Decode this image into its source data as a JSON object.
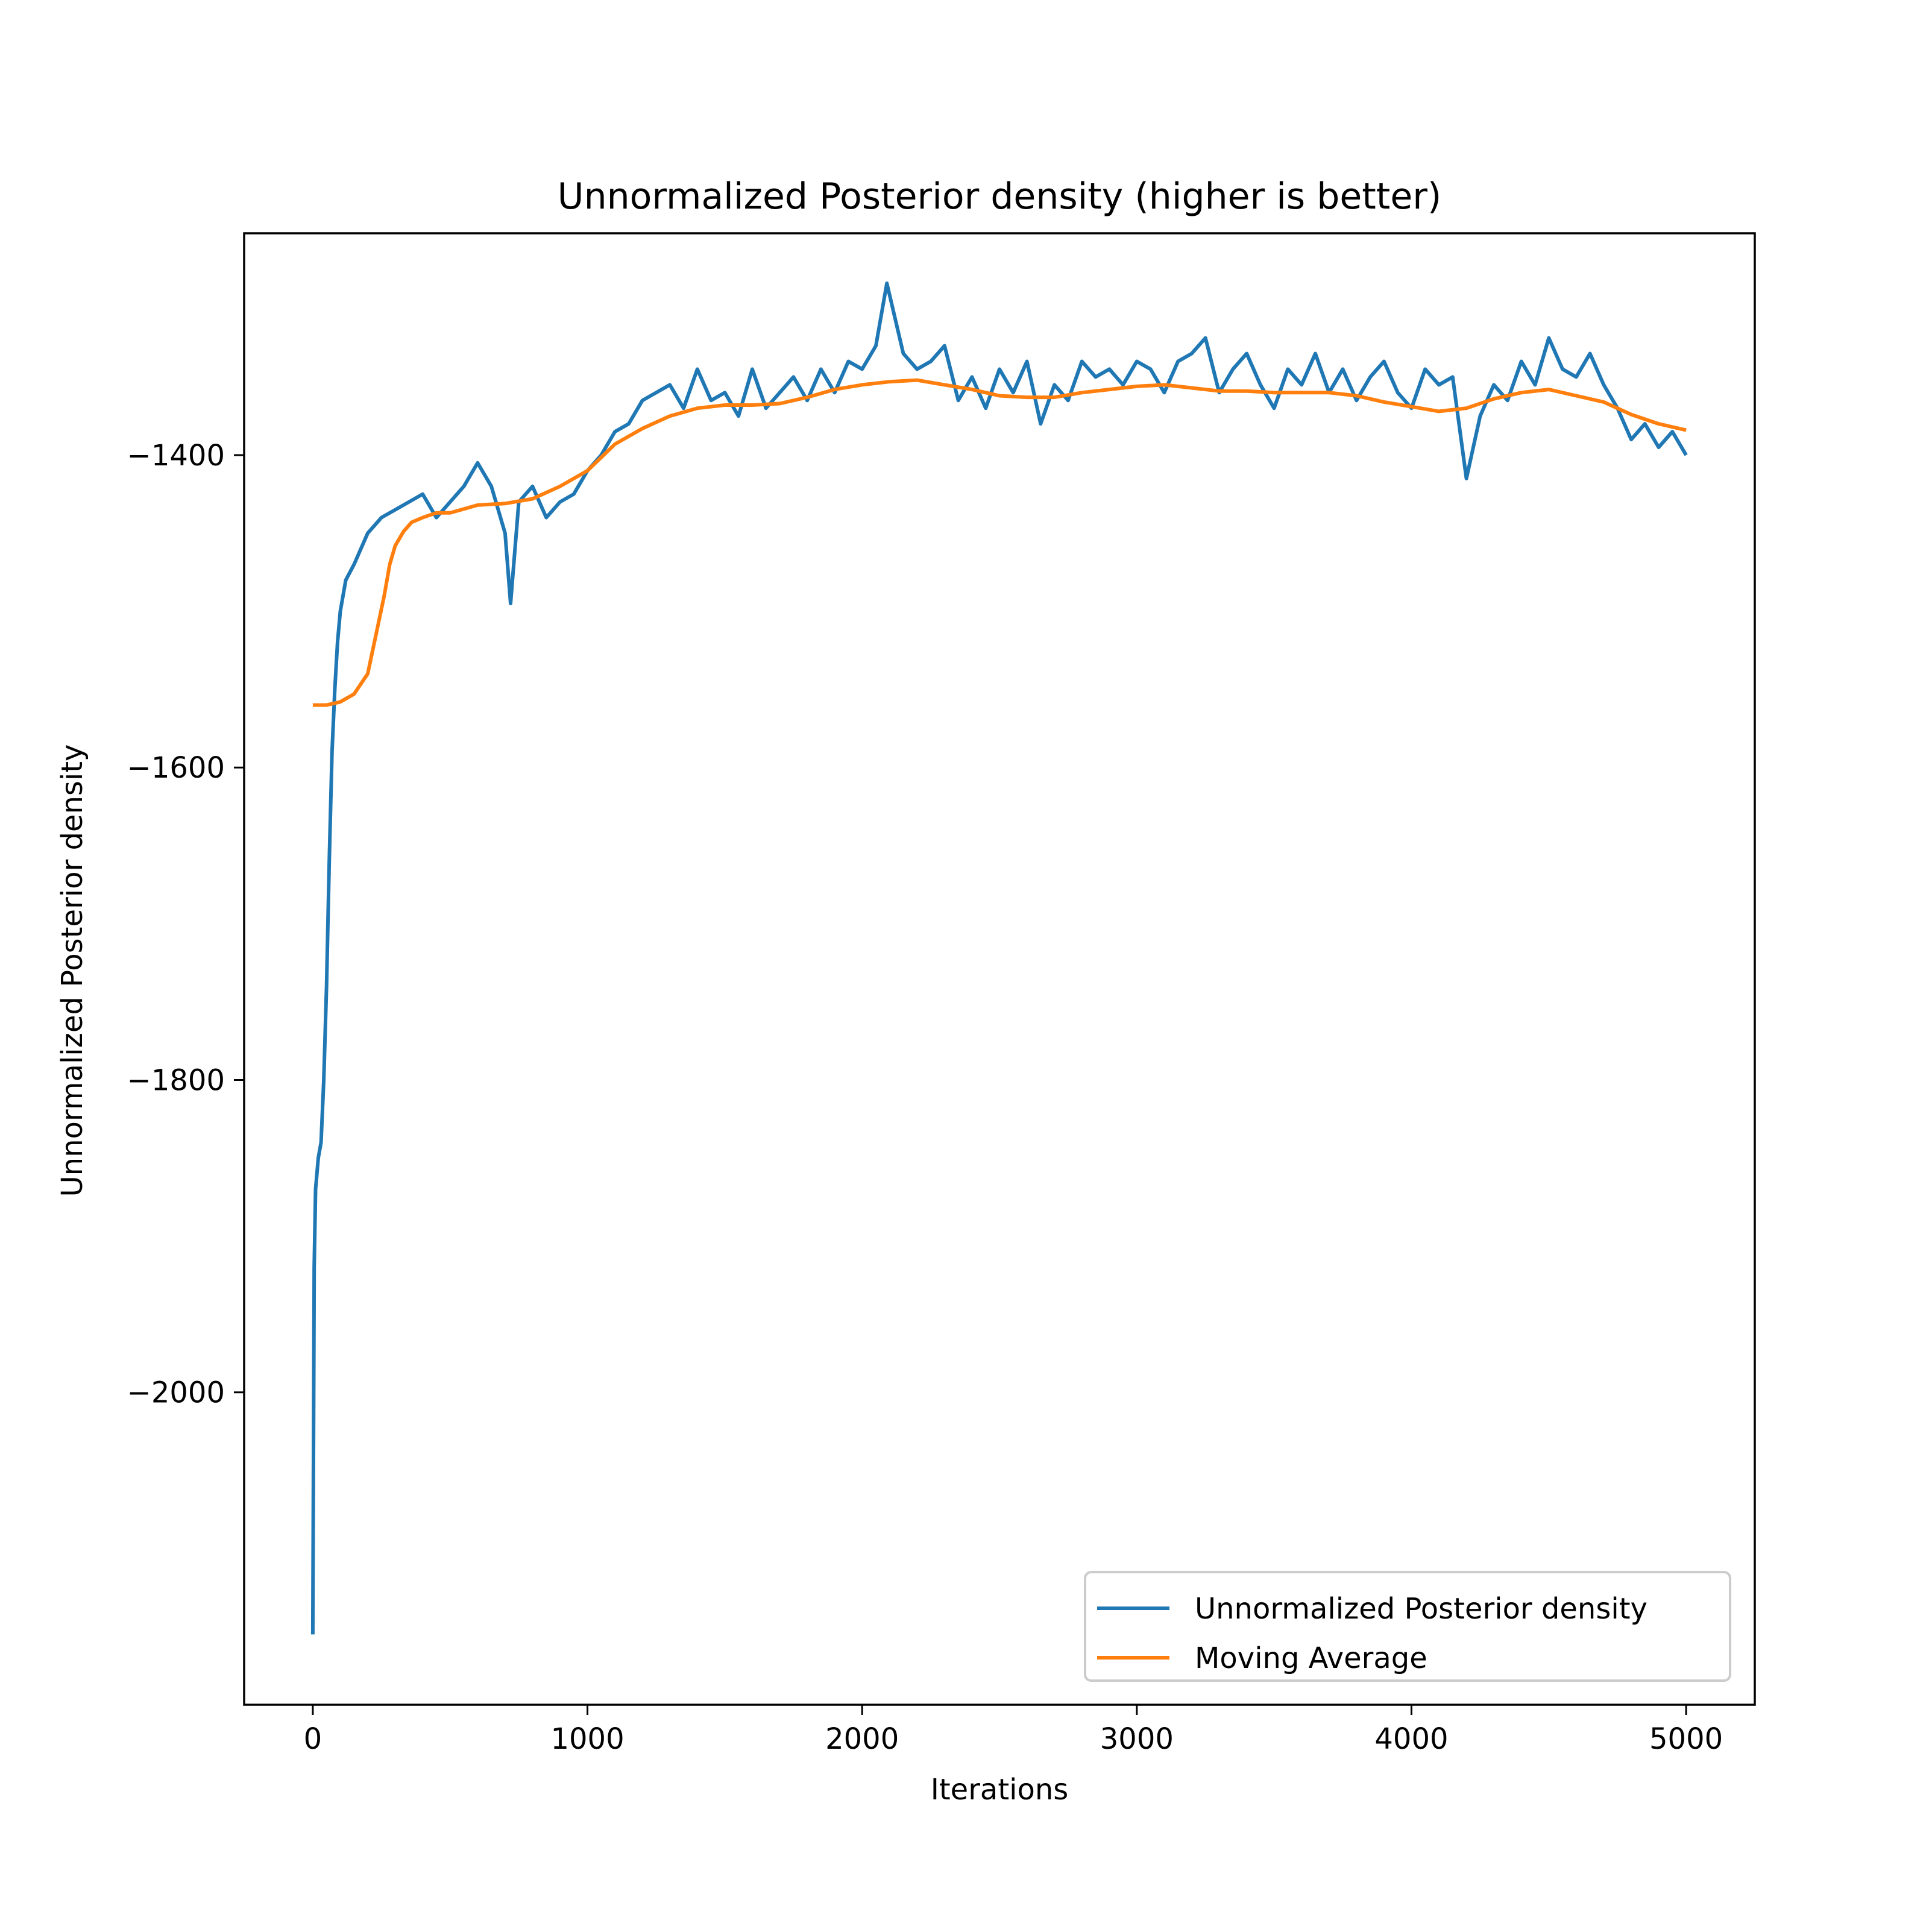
{
  "chart_data": {
    "type": "line",
    "title": "Unnormalized Posterior density (higher is better)",
    "xlabel": "Iterations",
    "ylabel": "Unnormalized Posterior density",
    "xlim": [
      -250,
      5250
    ],
    "ylim": [
      -2200,
      -1258
    ],
    "xticks": [
      0,
      1000,
      2000,
      3000,
      4000,
      5000
    ],
    "xtick_labels": [
      "0",
      "1000",
      "2000",
      "3000",
      "4000",
      "5000"
    ],
    "yticks": [
      -2000,
      -1800,
      -1600,
      -1400
    ],
    "ytick_labels": [
      "−2000",
      "−1800",
      "−1600",
      "−1400"
    ],
    "grid": false,
    "legend_position": "lower-right",
    "series": [
      {
        "name": "Unnormalized Posterior density",
        "color": "#1f77b4",
        "x": [
          0,
          5,
          10,
          20,
          30,
          40,
          50,
          60,
          70,
          80,
          90,
          100,
          120,
          150,
          200,
          250,
          300,
          350,
          400,
          450,
          500,
          550,
          600,
          650,
          700,
          720,
          750,
          800,
          850,
          900,
          950,
          1000,
          1050,
          1100,
          1150,
          1200,
          1250,
          1300,
          1350,
          1400,
          1450,
          1500,
          1550,
          1600,
          1650,
          1700,
          1750,
          1800,
          1850,
          1900,
          1950,
          2000,
          2050,
          2090,
          2150,
          2200,
          2250,
          2300,
          2350,
          2400,
          2450,
          2500,
          2550,
          2600,
          2650,
          2700,
          2750,
          2800,
          2850,
          2900,
          2950,
          3000,
          3050,
          3100,
          3150,
          3200,
          3250,
          3300,
          3350,
          3400,
          3450,
          3500,
          3550,
          3600,
          3650,
          3700,
          3750,
          3800,
          3850,
          3900,
          3950,
          4000,
          4050,
          4100,
          4150,
          4200,
          4250,
          4300,
          4350,
          4400,
          4450,
          4500,
          4550,
          4600,
          4650,
          4700,
          4750,
          4800,
          4850,
          4900,
          4950,
          5000
        ],
        "y": [
          -2155,
          -1920,
          -1870,
          -1850,
          -1840,
          -1800,
          -1740,
          -1660,
          -1590,
          -1550,
          -1520,
          -1500,
          -1480,
          -1470,
          -1450,
          -1440,
          -1435,
          -1430,
          -1425,
          -1440,
          -1430,
          -1420,
          -1405,
          -1420,
          -1450,
          -1495,
          -1430,
          -1420,
          -1440,
          -1430,
          -1425,
          -1410,
          -1400,
          -1385,
          -1380,
          -1365,
          -1360,
          -1355,
          -1370,
          -1345,
          -1365,
          -1360,
          -1375,
          -1345,
          -1370,
          -1360,
          -1350,
          -1365,
          -1345,
          -1360,
          -1340,
          -1345,
          -1330,
          -1290,
          -1335,
          -1345,
          -1340,
          -1330,
          -1365,
          -1350,
          -1370,
          -1345,
          -1360,
          -1340,
          -1380,
          -1355,
          -1365,
          -1340,
          -1350,
          -1345,
          -1355,
          -1340,
          -1345,
          -1360,
          -1340,
          -1335,
          -1325,
          -1360,
          -1345,
          -1335,
          -1355,
          -1370,
          -1345,
          -1355,
          -1335,
          -1360,
          -1345,
          -1365,
          -1350,
          -1340,
          -1360,
          -1370,
          -1345,
          -1355,
          -1350,
          -1415,
          -1375,
          -1355,
          -1365,
          -1340,
          -1355,
          -1325,
          -1345,
          -1350,
          -1335,
          -1355,
          -1370,
          -1390,
          -1380,
          -1395,
          -1385,
          -1400
        ]
      },
      {
        "name": "Moving Average",
        "color": "#ff7f0e",
        "x": [
          0,
          50,
          100,
          150,
          200,
          230,
          260,
          280,
          300,
          330,
          360,
          400,
          450,
          500,
          600,
          700,
          800,
          900,
          1000,
          1100,
          1200,
          1300,
          1400,
          1500,
          1600,
          1700,
          1800,
          1900,
          2000,
          2100,
          2200,
          2300,
          2400,
          2500,
          2600,
          2700,
          2800,
          2900,
          3000,
          3100,
          3200,
          3300,
          3400,
          3500,
          3600,
          3700,
          3800,
          3900,
          4000,
          4100,
          4200,
          4300,
          4400,
          4500,
          4600,
          4700,
          4800,
          4900,
          5000
        ],
        "y": [
          -1560,
          -1560,
          -1558,
          -1553,
          -1540,
          -1515,
          -1490,
          -1470,
          -1458,
          -1449,
          -1443,
          -1440,
          -1437,
          -1437,
          -1432,
          -1431,
          -1428,
          -1420,
          -1410,
          -1393,
          -1383,
          -1375,
          -1370,
          -1368,
          -1368,
          -1367,
          -1363,
          -1358,
          -1355,
          -1353,
          -1352,
          -1355,
          -1358,
          -1362,
          -1363,
          -1363,
          -1360,
          -1358,
          -1356,
          -1355,
          -1357,
          -1359,
          -1359,
          -1360,
          -1360,
          -1360,
          -1362,
          -1366,
          -1369,
          -1372,
          -1370,
          -1364,
          -1360,
          -1358,
          -1362,
          -1366,
          -1374,
          -1380,
          -1384
        ]
      }
    ]
  }
}
